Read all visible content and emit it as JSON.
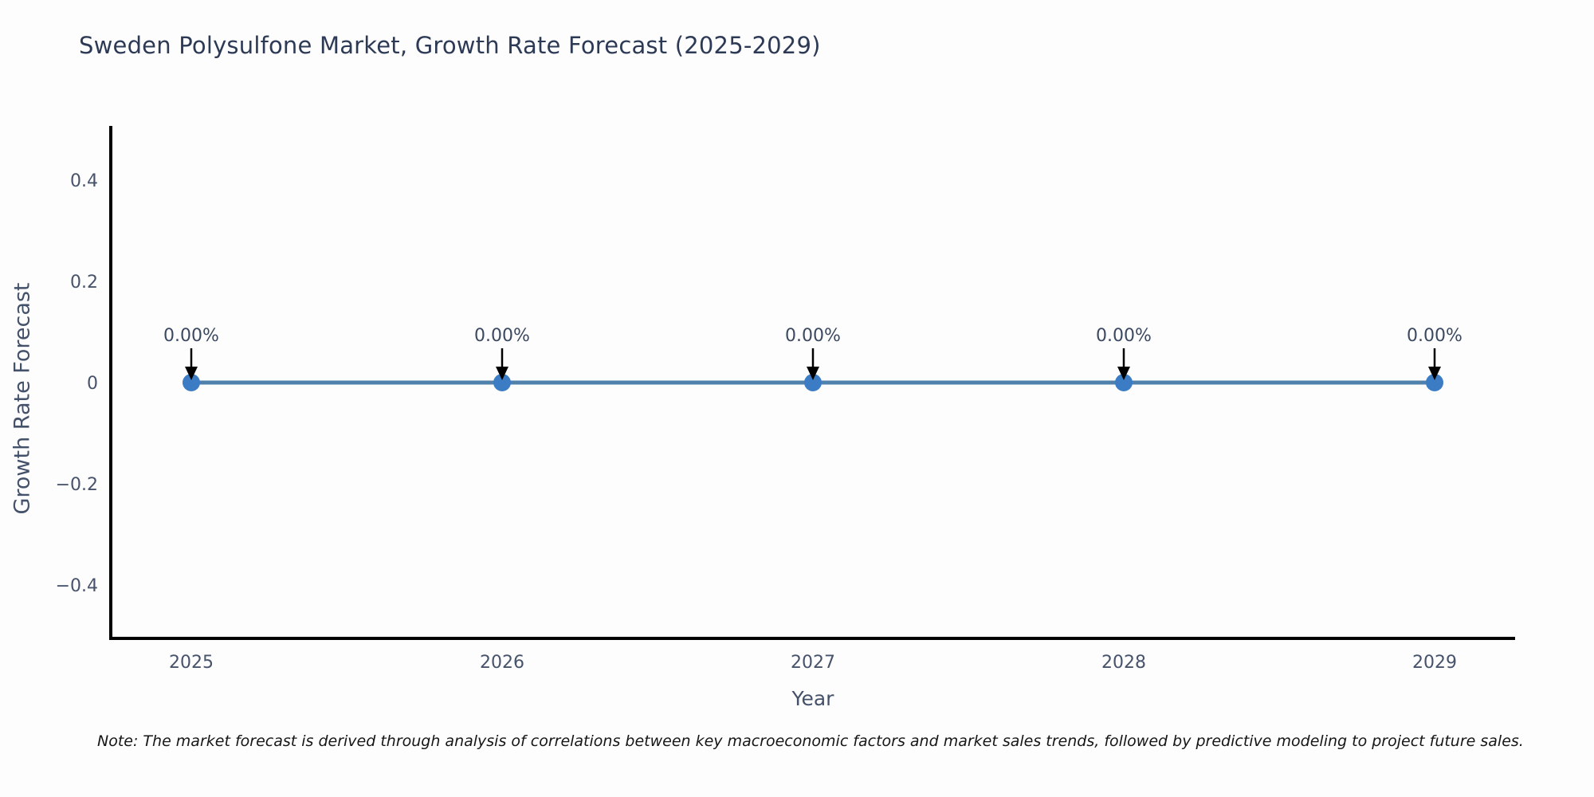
{
  "title": "Sweden Polysulfone Market, Growth Rate Forecast (2025-2029)",
  "note": "Note: The market forecast is derived through analysis of correlations between key macroeconomic factors and market sales trends, followed by predictive modeling to project future sales.",
  "colors": {
    "background": "#fdfdfd",
    "axis": "#000000",
    "line": "#4f81ac",
    "marker": "#3b7cc4",
    "arrow": "#000000",
    "tick_label": "#47536b",
    "annotation": "#3c4a61",
    "title": "#2d3a56",
    "axis_title": "#44516a"
  },
  "chart_data": {
    "type": "line",
    "title": "Sweden Polysulfone Market, Growth Rate Forecast (2025-2029)",
    "categories": [
      "2025",
      "2026",
      "2027",
      "2028",
      "2029"
    ],
    "series": [
      {
        "name": "Growth Rate Forecast",
        "values": [
          0,
          0,
          0,
          0,
          0
        ]
      }
    ],
    "point_labels": [
      "0.00%",
      "0.00%",
      "0.00%",
      "0.00%",
      "0.00%"
    ],
    "xlabel": "Year",
    "ylabel": "Growth Rate Forecast",
    "ylim": [
      -0.5,
      0.5
    ],
    "yticks": [
      0.4,
      0.2,
      0,
      -0.2,
      -0.4
    ],
    "ytick_labels": [
      "0.4",
      "0.2",
      "0",
      "−0.2",
      "−0.4"
    ],
    "grid": false,
    "legend": false,
    "annotations_have_arrows": true
  }
}
